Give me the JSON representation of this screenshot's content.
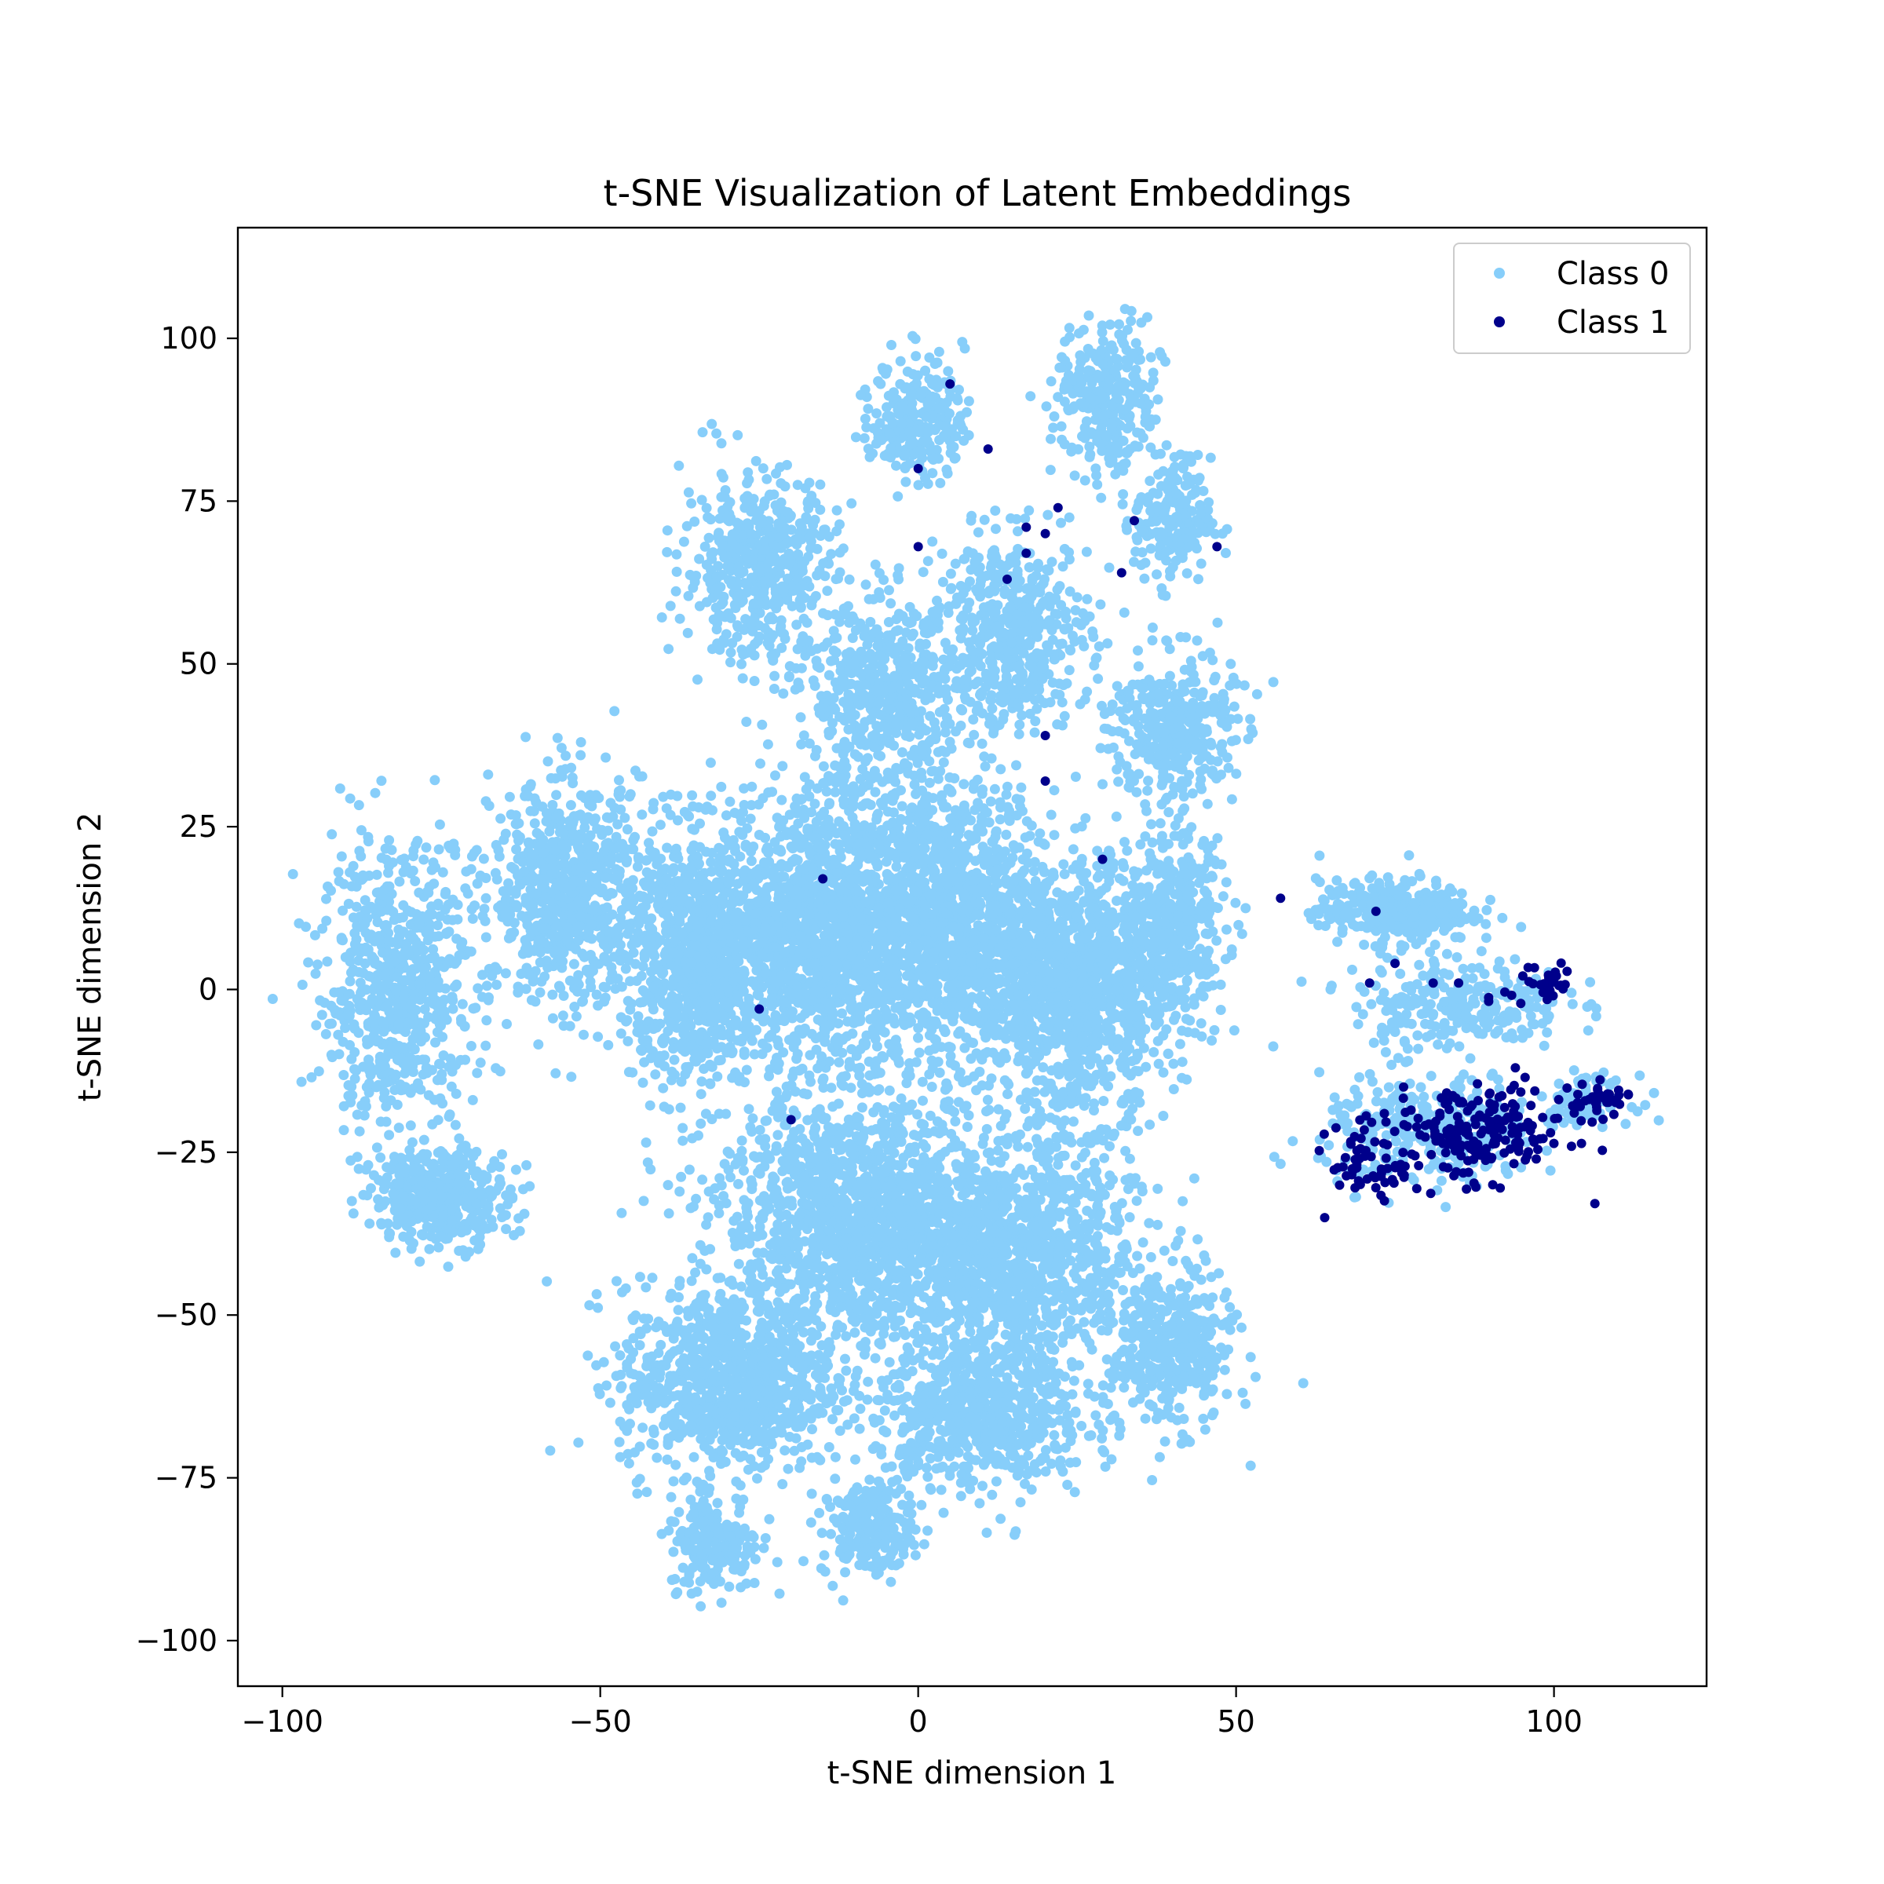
{
  "chart_data": {
    "type": "scatter",
    "title": "t-SNE Visualization of Latent Embeddings",
    "xlabel": "t-SNE dimension 1",
    "ylabel": "t-SNE dimension 2",
    "xlim": [
      -107,
      124
    ],
    "ylim": [
      -107,
      117
    ],
    "x_ticks": [
      -100,
      -50,
      0,
      50,
      100
    ],
    "y_ticks": [
      -100,
      -75,
      -50,
      -25,
      0,
      25,
      50,
      75,
      100
    ],
    "x_tick_labels": [
      "−100",
      "−50",
      "0",
      "50",
      "100"
    ],
    "y_tick_labels": [
      "−100",
      "−75",
      "−50",
      "−25",
      "0",
      "25",
      "50",
      "75",
      "100"
    ],
    "grid": false,
    "legend_position": "top-right",
    "series": [
      {
        "name": "Class 0",
        "color": "#87cefa",
        "clusters": [
          {
            "center": [
              -82,
              0
            ],
            "spread": [
              10,
              18
            ],
            "count": 700
          },
          {
            "center": [
              -55,
              15
            ],
            "spread": [
              10,
              14
            ],
            "count": 700
          },
          {
            "center": [
              -35,
              5
            ],
            "spread": [
              10,
              16
            ],
            "count": 900
          },
          {
            "center": [
              -15,
              10
            ],
            "spread": [
              14,
              18
            ],
            "count": 1300
          },
          {
            "center": [
              5,
              10
            ],
            "spread": [
              14,
              18
            ],
            "count": 1300
          },
          {
            "center": [
              25,
              0
            ],
            "spread": [
              12,
              16
            ],
            "count": 1100
          },
          {
            "center": [
              -10,
              -35
            ],
            "spread": [
              18,
              16
            ],
            "count": 1400
          },
          {
            "center": [
              15,
              -40
            ],
            "spread": [
              16,
              14
            ],
            "count": 1100
          },
          {
            "center": [
              -30,
              -60
            ],
            "spread": [
              14,
              12
            ],
            "count": 900
          },
          {
            "center": [
              10,
              -65
            ],
            "spread": [
              14,
              10
            ],
            "count": 700
          },
          {
            "center": [
              40,
              -55
            ],
            "spread": [
              8,
              10
            ],
            "count": 400
          },
          {
            "center": [
              -75,
              -32
            ],
            "spread": [
              9,
              6
            ],
            "count": 400
          },
          {
            "center": [
              -25,
              65
            ],
            "spread": [
              10,
              12
            ],
            "count": 500
          },
          {
            "center": [
              -5,
              45
            ],
            "spread": [
              10,
              12
            ],
            "count": 500
          },
          {
            "center": [
              15,
              55
            ],
            "spread": [
              10,
              12
            ],
            "count": 500
          },
          {
            "center": [
              40,
              40
            ],
            "spread": [
              8,
              10
            ],
            "count": 350
          },
          {
            "center": [
              40,
              10
            ],
            "spread": [
              7,
              12
            ],
            "count": 400
          },
          {
            "center": [
              0,
              88
            ],
            "spread": [
              6,
              8
            ],
            "count": 250
          },
          {
            "center": [
              30,
              90
            ],
            "spread": [
              7,
              10
            ],
            "count": 300
          },
          {
            "center": [
              40,
              72
            ],
            "spread": [
              5,
              8
            ],
            "count": 200
          },
          {
            "center": [
              -32,
              -85
            ],
            "spread": [
              6,
              6
            ],
            "count": 200
          },
          {
            "center": [
              -8,
              -83
            ],
            "spread": [
              6,
              6
            ],
            "count": 200
          },
          {
            "center": [
              75,
              12
            ],
            "spread": [
              10,
              4
            ],
            "count": 350
          },
          {
            "center": [
              85,
              -2
            ],
            "spread": [
              14,
              6
            ],
            "count": 250
          },
          {
            "center": [
              80,
              -22
            ],
            "spread": [
              14,
              7
            ],
            "count": 300
          },
          {
            "center": [
              105,
              -17
            ],
            "spread": [
              6,
              3
            ],
            "count": 80
          }
        ]
      },
      {
        "name": "Class 1",
        "color": "#00008b",
        "clusters": [
          {
            "center": [
              88,
              -22
            ],
            "spread": [
              12,
              6
            ],
            "count": 200
          },
          {
            "center": [
              72,
              -27
            ],
            "spread": [
              6,
              5
            ],
            "count": 60
          },
          {
            "center": [
              98,
              1
            ],
            "spread": [
              5,
              4
            ],
            "count": 30
          },
          {
            "center": [
              107,
              -17
            ],
            "spread": [
              4,
              2
            ],
            "count": 40
          }
        ],
        "points": [
          [
            5,
            93
          ],
          [
            0,
            80
          ],
          [
            11,
            83
          ],
          [
            0,
            68
          ],
          [
            17,
            71
          ],
          [
            20,
            70
          ],
          [
            22,
            74
          ],
          [
            34,
            72
          ],
          [
            17,
            67
          ],
          [
            14,
            63
          ],
          [
            32,
            64
          ],
          [
            47,
            68
          ],
          [
            20,
            39
          ],
          [
            20,
            32
          ],
          [
            29,
            20
          ],
          [
            -15,
            17
          ],
          [
            -25,
            -3
          ],
          [
            -20,
            -20
          ],
          [
            57,
            14
          ],
          [
            72,
            12
          ],
          [
            71,
            1
          ],
          [
            75,
            4
          ],
          [
            81,
            1
          ],
          [
            85,
            1
          ]
        ]
      }
    ]
  }
}
